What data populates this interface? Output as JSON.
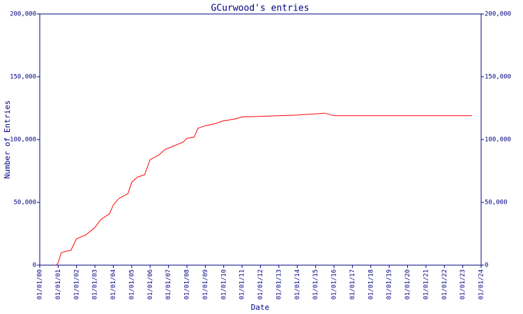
{
  "chart_data": {
    "type": "line",
    "title": "GCurwood's entries",
    "x_label": "Date",
    "y_label": "Number of Entries",
    "series": [
      {
        "name": "GCurwood",
        "color": "#ff0000",
        "x": [
          0.9,
          1.0,
          1.17,
          1.7,
          2.0,
          2.5,
          3.0,
          3.3,
          3.8,
          4.0,
          4.3,
          4.8,
          5.0,
          5.3,
          5.7,
          6.0,
          6.5,
          6.8,
          7.3,
          7.8,
          8.0,
          8.4,
          8.6,
          9.0,
          9.5,
          10.0,
          10.5,
          11.0,
          12.0,
          13.0,
          14.0,
          15.0,
          15.5,
          16.0,
          23.5
        ],
        "values": [
          0,
          2000,
          10000,
          12000,
          21000,
          24000,
          30000,
          36000,
          41000,
          48000,
          53000,
          57000,
          66000,
          70000,
          72000,
          84000,
          88000,
          92000,
          95000,
          98000,
          101000,
          102000,
          109000,
          111000,
          112500,
          115000,
          116000,
          118000,
          118500,
          119000,
          119500,
          120500,
          121000,
          119000,
          119000
        ]
      }
    ],
    "xlim": [
      0,
      24
    ],
    "xticks": [
      {
        "value": 0,
        "label": "01/01/00"
      },
      {
        "value": 1,
        "label": "01/01/01"
      },
      {
        "value": 2,
        "label": "01/01/02"
      },
      {
        "value": 3,
        "label": "01/01/03"
      },
      {
        "value": 4,
        "label": "01/01/04"
      },
      {
        "value": 5,
        "label": "01/01/05"
      },
      {
        "value": 6,
        "label": "01/01/06"
      },
      {
        "value": 7,
        "label": "01/01/07"
      },
      {
        "value": 8,
        "label": "01/01/08"
      },
      {
        "value": 9,
        "label": "01/01/09"
      },
      {
        "value": 10,
        "label": "01/01/10"
      },
      {
        "value": 11,
        "label": "01/01/11"
      },
      {
        "value": 12,
        "label": "01/01/12"
      },
      {
        "value": 13,
        "label": "01/01/13"
      },
      {
        "value": 14,
        "label": "01/01/14"
      },
      {
        "value": 15,
        "label": "01/01/15"
      },
      {
        "value": 16,
        "label": "01/01/16"
      },
      {
        "value": 17,
        "label": "01/01/17"
      },
      {
        "value": 18,
        "label": "01/01/18"
      },
      {
        "value": 19,
        "label": "01/01/19"
      },
      {
        "value": 20,
        "label": "01/01/20"
      },
      {
        "value": 21,
        "label": "01/01/21"
      },
      {
        "value": 22,
        "label": "01/01/22"
      },
      {
        "value": 23,
        "label": "01/01/23"
      },
      {
        "value": 24,
        "label": "01/01/24"
      }
    ],
    "ylim": [
      0,
      200000
    ],
    "yticks": [
      0,
      {
        "value": 50000,
        "label": "50,000"
      },
      {
        "value": 100000,
        "label": "100,000"
      },
      {
        "value": 150000,
        "label": "150,000"
      },
      {
        "value": 200000,
        "label": "200,000"
      }
    ],
    "axis_color": "#000080"
  }
}
